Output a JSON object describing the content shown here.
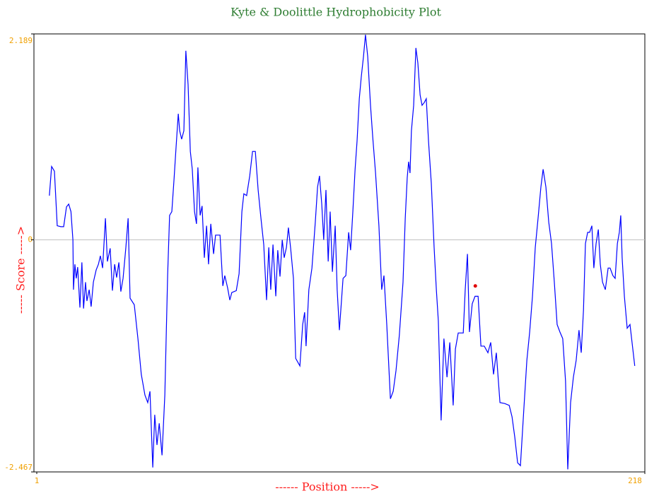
{
  "chart_data": {
    "type": "line",
    "title": "Kyte & Doolittle Hydrophobicity Plot",
    "x_label": "------ Position ----->",
    "y_label": "----- Score ----->",
    "xlim": [
      1,
      218
    ],
    "xticks": [
      1,
      218
    ],
    "ylim": [
      -2.467,
      2.189
    ],
    "yticks": [
      2.189,
      0,
      -2.467
    ],
    "zero_line": true,
    "title_color": "#2e7d32",
    "axis_label_color": "#ff2020",
    "tick_color": "#f0a000",
    "x": [
      5.5,
      6.3,
      7.3,
      8.3,
      9.6,
      10.6,
      11.6,
      12.4,
      13.2,
      13.9,
      14.1,
      14.6,
      15.1,
      15.6,
      16.4,
      17.1,
      17.7,
      18.4,
      18.9,
      19.7,
      20.4,
      21.2,
      22.2,
      23.0,
      23.7,
      24.5,
      25.5,
      26.2,
      27.2,
      28.0,
      28.8,
      29.5,
      30.3,
      31.0,
      31.8,
      32.8,
      33.6,
      34.3,
      35.8,
      37.1,
      38.3,
      39.6,
      40.6,
      41.4,
      42.4,
      43.1,
      43.9,
      44.7,
      45.7,
      46.7,
      47.7,
      48.4,
      49.2,
      50.0,
      50.7,
      51.5,
      52.0,
      52.7,
      53.5,
      54.2,
      55.0,
      55.8,
      56.5,
      57.3,
      58.0,
      58.5,
      59.3,
      60.0,
      60.8,
      61.6,
      62.3,
      63.1,
      64.1,
      64.8,
      66.4,
      67.4,
      68.1,
      69.1,
      69.9,
      70.6,
      72.2,
      73.2,
      74.2,
      74.9,
      75.9,
      77.0,
      78.0,
      79.0,
      80.0,
      81.0,
      82.0,
      83.0,
      83.8,
      84.5,
      85.3,
      86.3,
      87.0,
      87.8,
      88.6,
      89.3,
      90.1,
      90.8,
      91.6,
      92.6,
      93.4,
      94.9,
      95.9,
      96.6,
      97.1,
      98.1,
      99.2,
      100.4,
      101.2,
      101.9,
      102.7,
      103.4,
      104.2,
      105.0,
      105.7,
      106.5,
      107.5,
      108.2,
      109.0,
      110.3,
      111.3,
      112.3,
      113.0,
      113.8,
      114.6,
      115.3,
      116.1,
      116.8,
      117.6,
      118.3,
      119.1,
      120.1,
      120.9,
      121.9,
      123.1,
      124.1,
      124.9,
      125.9,
      127.2,
      128.2,
      129.2,
      130.4,
      131.7,
      132.5,
      133.2,
      133.7,
      134.2,
      134.7,
      135.5,
      136.3,
      137.0,
      137.8,
      138.5,
      139.3,
      140.0,
      140.8,
      141.8,
      142.8,
      143.6,
      144.3,
      145.3,
      146.3,
      147.4,
      148.4,
      149.6,
      150.4,
      151.4,
      153.2,
      153.9,
      154.7,
      155.4,
      156.4,
      157.4,
      158.5,
      159.5,
      160.7,
      162.0,
      163.0,
      164.0,
      165.0,
      166.3,
      168.0,
      169.6,
      170.6,
      171.6,
      172.6,
      173.6,
      174.9,
      175.9,
      176.9,
      177.9,
      178.9,
      179.9,
      180.9,
      181.7,
      182.7,
      183.7,
      184.7,
      185.7,
      186.7,
      187.7,
      188.7,
      189.7,
      190.5,
      191.5,
      192.5,
      193.5,
      194.5,
      195.3,
      196.1,
      196.8,
      197.6,
      198.3,
      199.1,
      199.8,
      200.6,
      201.4,
      202.1,
      202.9,
      203.9,
      204.9,
      205.6,
      206.6,
      207.4,
      208.2,
      208.9,
      209.4,
      209.9,
      210.7,
      211.7,
      212.7,
      214.4
    ],
    "series": [
      {
        "color": "#0000ff",
        "values": [
          0.47,
          0.78,
          0.73,
          0.15,
          0.14,
          0.14,
          0.35,
          0.38,
          0.3,
          0,
          -0.53,
          -0.26,
          -0.41,
          -0.29,
          -0.72,
          -0.24,
          -0.73,
          -0.45,
          -0.65,
          -0.53,
          -0.71,
          -0.45,
          -0.32,
          -0.26,
          -0.17,
          -0.3,
          0.23,
          -0.23,
          -0.09,
          -0.54,
          -0.26,
          -0.4,
          -0.24,
          -0.55,
          -0.41,
          -0.08,
          0.23,
          -0.62,
          -0.69,
          -1.05,
          -1.43,
          -1.65,
          -1.73,
          -1.61,
          -2.42,
          -1.86,
          -2.18,
          -1.95,
          -2.29,
          -1.65,
          -0.38,
          0.26,
          0.3,
          0.65,
          0.98,
          1.34,
          1.16,
          1.07,
          1.16,
          2.01,
          1.65,
          0.94,
          0.75,
          0.3,
          0.17,
          0.77,
          0.26,
          0.36,
          -0.19,
          0.15,
          -0.26,
          0.17,
          -0.15,
          0.05,
          0.05,
          -0.49,
          -0.38,
          -0.51,
          -0.64,
          -0.56,
          -0.54,
          -0.36,
          0.3,
          0.49,
          0.47,
          0.68,
          0.94,
          0.94,
          0.53,
          0.23,
          -0.05,
          -0.64,
          -0.08,
          -0.53,
          -0.05,
          -0.6,
          -0.11,
          -0.39,
          0,
          -0.19,
          -0.08,
          0.13,
          -0.09,
          -0.41,
          -1.26,
          -1.34,
          -0.9,
          -0.77,
          -1.13,
          -0.53,
          -0.3,
          0.19,
          0.56,
          0.68,
          0.38,
          0,
          0.53,
          -0.23,
          0.3,
          -0.34,
          0.15,
          -0.53,
          -0.96,
          -0.41,
          -0.38,
          0.08,
          -0.11,
          0.3,
          0.75,
          1.05,
          1.5,
          1.73,
          1.95,
          2.18,
          1.95,
          1.43,
          1.09,
          0.71,
          0.15,
          -0.53,
          -0.38,
          -0.9,
          -1.69,
          -1.61,
          -1.39,
          -1.01,
          -0.45,
          0.23,
          0.66,
          0.83,
          0.71,
          1.16,
          1.43,
          2.04,
          1.88,
          1.54,
          1.43,
          1.46,
          1.5,
          1.05,
          0.6,
          -0.08,
          -0.53,
          -0.86,
          -1.92,
          -1.05,
          -1.46,
          -1.09,
          -1.76,
          -1.16,
          -0.99,
          -0.99,
          -0.53,
          -0.15,
          -0.98,
          -0.68,
          -0.6,
          -0.6,
          -1.13,
          -1.13,
          -1.2,
          -1.09,
          -1.43,
          -1.2,
          -1.73,
          -1.74,
          -1.76,
          -1.88,
          -2.1,
          -2.37,
          -2.4,
          -1.76,
          -1.28,
          -0.98,
          -0.6,
          -0.08,
          0.23,
          0.56,
          0.75,
          0.56,
          0.19,
          -0.04,
          -0.45,
          -0.9,
          -0.98,
          -1.05,
          -1.5,
          -2.44,
          -1.73,
          -1.46,
          -1.28,
          -0.96,
          -1.2,
          -0.75,
          -0.04,
          0.08,
          0.08,
          0.15,
          -0.3,
          -0.04,
          0.11,
          -0.26,
          -0.45,
          -0.53,
          -0.3,
          -0.3,
          -0.38,
          -0.41,
          -0.04,
          0.08,
          0.26,
          -0.19,
          -0.6,
          -0.94,
          -0.9,
          -1.34
        ]
      }
    ],
    "marker": {
      "x": 157.5,
      "y": -0.49,
      "color": "#e00000"
    }
  }
}
